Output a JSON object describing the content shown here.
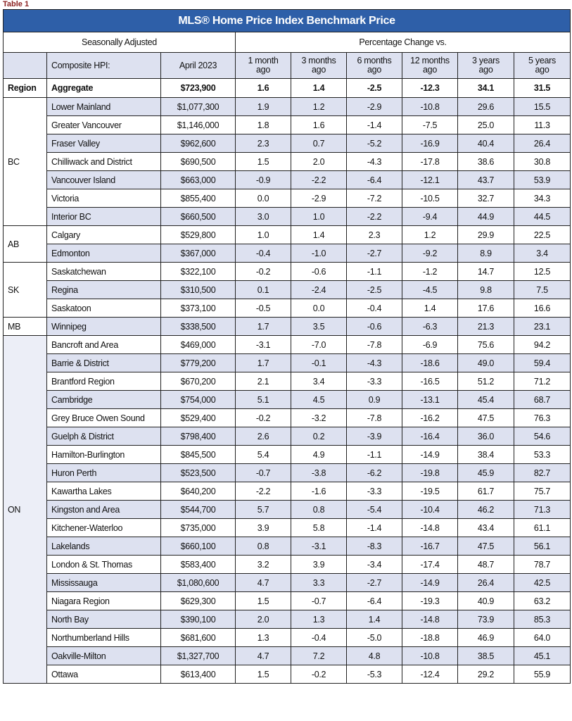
{
  "caption": "Table 1",
  "title": "MLS® Home Price Index Benchmark Price",
  "header": {
    "seasonally_adjusted": "Seasonally Adjusted",
    "percentage_change": "Percentage Change vs.",
    "composite": "Composite HPI:",
    "date": "April 2023",
    "columns": [
      "1 month ago",
      "3 months ago",
      "6 months ago",
      "12 months ago",
      "3 years ago",
      "5 years ago"
    ]
  },
  "aggregate": {
    "region": "Region",
    "name": "Aggregate",
    "price": "$723,900",
    "changes": [
      "1.6",
      "1.4",
      "-2.5",
      "-12.3",
      "34.1",
      "31.5"
    ]
  },
  "groups": [
    {
      "region": "BC",
      "rows": [
        {
          "name": "Lower Mainland",
          "price": "$1,077,300",
          "changes": [
            "1.9",
            "1.2",
            "-2.9",
            "-10.8",
            "29.6",
            "15.5"
          ]
        },
        {
          "name": "Greater Vancouver",
          "price": "$1,146,000",
          "changes": [
            "1.8",
            "1.6",
            "-1.4",
            "-7.5",
            "25.0",
            "11.3"
          ]
        },
        {
          "name": "Fraser Valley",
          "price": "$962,600",
          "changes": [
            "2.3",
            "0.7",
            "-5.2",
            "-16.9",
            "40.4",
            "26.4"
          ]
        },
        {
          "name": "Chilliwack and District",
          "price": "$690,500",
          "changes": [
            "1.5",
            "2.0",
            "-4.3",
            "-17.8",
            "38.6",
            "30.8"
          ]
        },
        {
          "name": "Vancouver Island",
          "price": "$663,000",
          "changes": [
            "-0.9",
            "-2.2",
            "-6.4",
            "-12.1",
            "43.7",
            "53.9"
          ]
        },
        {
          "name": "Victoria",
          "price": "$855,400",
          "changes": [
            "0.0",
            "-2.9",
            "-7.2",
            "-10.5",
            "32.7",
            "34.3"
          ]
        },
        {
          "name": "Interior BC",
          "price": "$660,500",
          "changes": [
            "3.0",
            "1.0",
            "-2.2",
            "-9.4",
            "44.9",
            "44.5"
          ]
        }
      ]
    },
    {
      "region": "AB",
      "rows": [
        {
          "name": "Calgary",
          "price": "$529,800",
          "changes": [
            "1.0",
            "1.4",
            "2.3",
            "1.2",
            "29.9",
            "22.5"
          ]
        },
        {
          "name": "Edmonton",
          "price": "$367,000",
          "changes": [
            "-0.4",
            "-1.0",
            "-2.7",
            "-9.2",
            "8.9",
            "3.4"
          ]
        }
      ]
    },
    {
      "region": "SK",
      "rows": [
        {
          "name": "Saskatchewan",
          "price": "$322,100",
          "changes": [
            "-0.2",
            "-0.6",
            "-1.1",
            "-1.2",
            "14.7",
            "12.5"
          ]
        },
        {
          "name": "Regina",
          "price": "$310,500",
          "changes": [
            "0.1",
            "-2.4",
            "-2.5",
            "-4.5",
            "9.8",
            "7.5"
          ]
        },
        {
          "name": "Saskatoon",
          "price": "$373,100",
          "changes": [
            "-0.5",
            "0.0",
            "-0.4",
            "1.4",
            "17.6",
            "16.6"
          ]
        }
      ]
    },
    {
      "region": "MB",
      "rows": [
        {
          "name": "Winnipeg",
          "price": "$338,500",
          "changes": [
            "1.7",
            "3.5",
            "-0.6",
            "-6.3",
            "21.3",
            "23.1"
          ]
        }
      ]
    },
    {
      "region": "ON",
      "rows": [
        {
          "name": "Bancroft and Area",
          "price": "$469,000",
          "changes": [
            "-3.1",
            "-7.0",
            "-7.8",
            "-6.9",
            "75.6",
            "94.2"
          ]
        },
        {
          "name": "Barrie & District",
          "price": "$779,200",
          "changes": [
            "1.7",
            "-0.1",
            "-4.3",
            "-18.6",
            "49.0",
            "59.4"
          ]
        },
        {
          "name": "Brantford Region",
          "price": "$670,200",
          "changes": [
            "2.1",
            "3.4",
            "-3.3",
            "-16.5",
            "51.2",
            "71.2"
          ]
        },
        {
          "name": "Cambridge",
          "price": "$754,000",
          "changes": [
            "5.1",
            "4.5",
            "0.9",
            "-13.1",
            "45.4",
            "68.7"
          ]
        },
        {
          "name": "Grey Bruce Owen Sound",
          "price": "$529,400",
          "changes": [
            "-0.2",
            "-3.2",
            "-7.8",
            "-16.2",
            "47.5",
            "76.3"
          ]
        },
        {
          "name": "Guelph & District",
          "price": "$798,400",
          "changes": [
            "2.6",
            "0.2",
            "-3.9",
            "-16.4",
            "36.0",
            "54.6"
          ]
        },
        {
          "name": "Hamilton-Burlington",
          "price": "$845,500",
          "changes": [
            "5.4",
            "4.9",
            "-1.1",
            "-14.9",
            "38.4",
            "53.3"
          ]
        },
        {
          "name": "Huron Perth",
          "price": "$523,500",
          "changes": [
            "-0.7",
            "-3.8",
            "-6.2",
            "-19.8",
            "45.9",
            "82.7"
          ]
        },
        {
          "name": "Kawartha Lakes",
          "price": "$640,200",
          "changes": [
            "-2.2",
            "-1.6",
            "-3.3",
            "-19.5",
            "61.7",
            "75.7"
          ]
        },
        {
          "name": "Kingston and Area",
          "price": "$544,700",
          "changes": [
            "5.7",
            "0.8",
            "-5.4",
            "-10.4",
            "46.2",
            "71.3"
          ]
        },
        {
          "name": "Kitchener-Waterloo",
          "price": "$735,000",
          "changes": [
            "3.9",
            "5.8",
            "-1.4",
            "-14.8",
            "43.4",
            "61.1"
          ]
        },
        {
          "name": "Lakelands",
          "price": "$660,100",
          "changes": [
            "0.8",
            "-3.1",
            "-8.3",
            "-16.7",
            "47.5",
            "56.1"
          ]
        },
        {
          "name": "London & St. Thomas",
          "price": "$583,400",
          "changes": [
            "3.2",
            "3.9",
            "-3.4",
            "-17.4",
            "48.7",
            "78.7"
          ]
        },
        {
          "name": "Mississauga",
          "price": "$1,080,600",
          "changes": [
            "4.7",
            "3.3",
            "-2.7",
            "-14.9",
            "26.4",
            "42.5"
          ]
        },
        {
          "name": "Niagara Region",
          "price": "$629,300",
          "changes": [
            "1.5",
            "-0.7",
            "-6.4",
            "-19.3",
            "40.9",
            "63.2"
          ]
        },
        {
          "name": "North Bay",
          "price": "$390,100",
          "changes": [
            "2.0",
            "1.3",
            "1.4",
            "-14.8",
            "73.9",
            "85.3"
          ]
        },
        {
          "name": "Northumberland Hills",
          "price": "$681,600",
          "changes": [
            "1.3",
            "-0.4",
            "-5.0",
            "-18.8",
            "46.9",
            "64.0"
          ]
        },
        {
          "name": "Oakville-Milton",
          "price": "$1,327,700",
          "changes": [
            "4.7",
            "7.2",
            "4.8",
            "-10.8",
            "38.5",
            "45.1"
          ]
        },
        {
          "name": "Ottawa",
          "price": "$613,400",
          "changes": [
            "1.5",
            "-0.2",
            "-5.3",
            "-12.4",
            "29.2",
            "55.9"
          ]
        }
      ]
    }
  ],
  "colors": {
    "title_bar": "#2e5fa8",
    "row_shade": "#dde1f0",
    "caption": "#8a1f1f"
  }
}
